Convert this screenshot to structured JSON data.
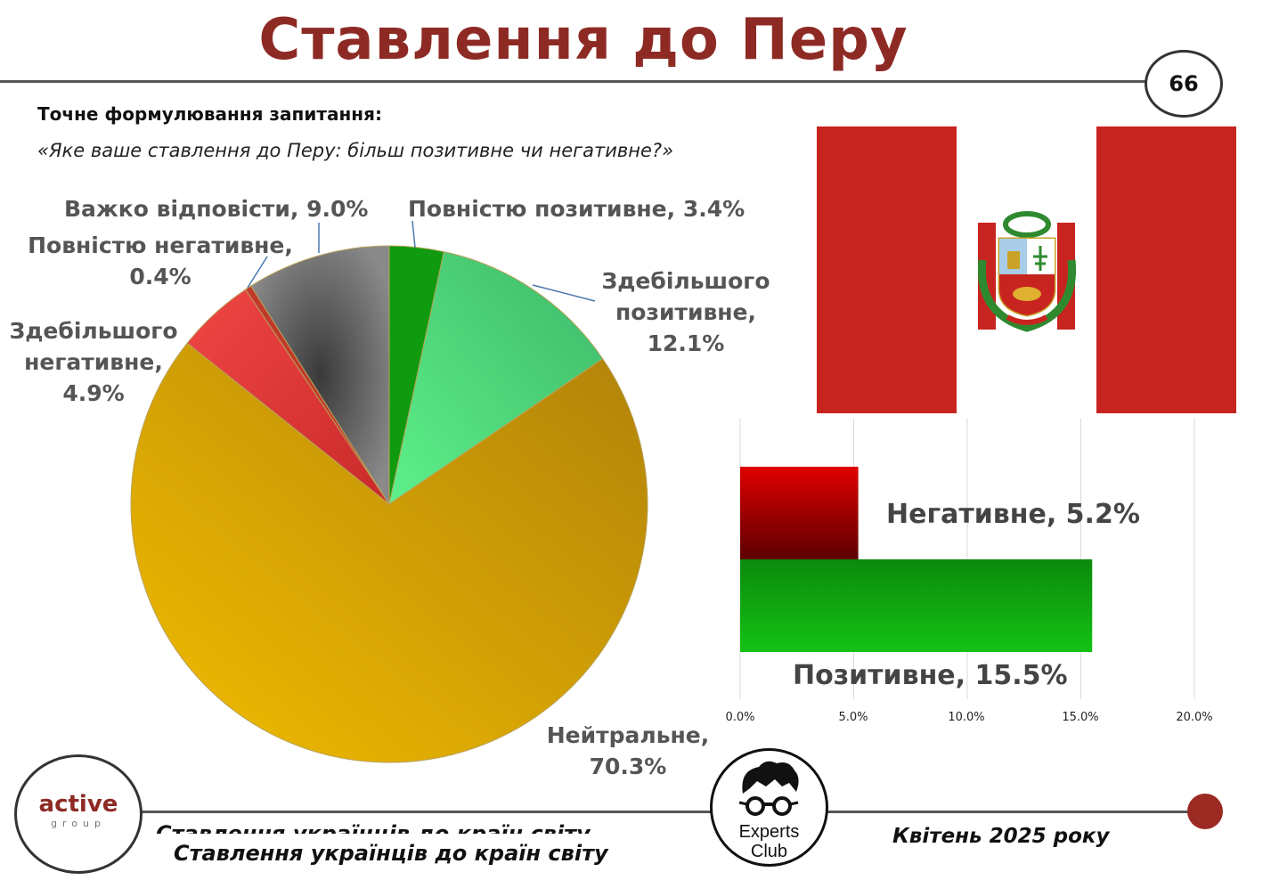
{
  "title": "Ставлення до Перу",
  "page_number": "66",
  "question": {
    "heading": "Точне формулювання запитання:",
    "text": "«Яке ваше ставлення до Перу: більш позитивне чи негативне?»"
  },
  "pie_labels": {
    "full_positive": "Повністю позитивне, 3.4%",
    "mostly_positive": [
      "Здебільшого",
      "позитивне,",
      "12.1%"
    ],
    "neutral": [
      "Нейтральне,",
      "70.3%"
    ],
    "mostly_negative": [
      "Здебільшого",
      "негативне,",
      "4.9%"
    ],
    "full_negative": [
      "Повністю негативне,",
      "0.4%"
    ],
    "hard_to_say": "Важко відповісти, 9.0%"
  },
  "bar_labels": {
    "negative": "Негативне, 5.2%",
    "positive": "Позитивне, 15.5%"
  },
  "chart_data": [
    {
      "type": "pie",
      "categories": [
        "Повністю позитивне",
        "Здебільшого позитивне",
        "Нейтральне",
        "Здебільшого негативне",
        "Повністю негативне",
        "Важко відповісти"
      ],
      "values": [
        3.4,
        12.1,
        70.3,
        4.9,
        0.4,
        9.0
      ],
      "colors": [
        "#0f9a0f",
        "#4fcf74",
        "#dda20a",
        "#d63c3c",
        "#c0392b",
        "#5a5a5a"
      ]
    },
    {
      "type": "bar",
      "orientation": "horizontal",
      "categories": [
        "Негативне",
        "Позитивне"
      ],
      "values": [
        5.2,
        15.5
      ],
      "colors": [
        "#c00000",
        "#1aa31a"
      ],
      "xlim": [
        0,
        20
      ],
      "x_ticks": [
        "0.0%",
        "5.0%",
        "10.0%",
        "15.0%",
        "20.0%"
      ],
      "grid": true
    }
  ],
  "footer": {
    "subtitle": "Ставлення українців до країн світу",
    "date": "Квітень 2025 року",
    "active_logo_word": "active",
    "active_logo_sub": "group",
    "experts_club_line1": "Experts",
    "experts_club_line2": "Club"
  },
  "colors": {
    "title": "#8e2a24",
    "flag_red": "#c8241f",
    "accent_dot": "#9b2a23"
  }
}
